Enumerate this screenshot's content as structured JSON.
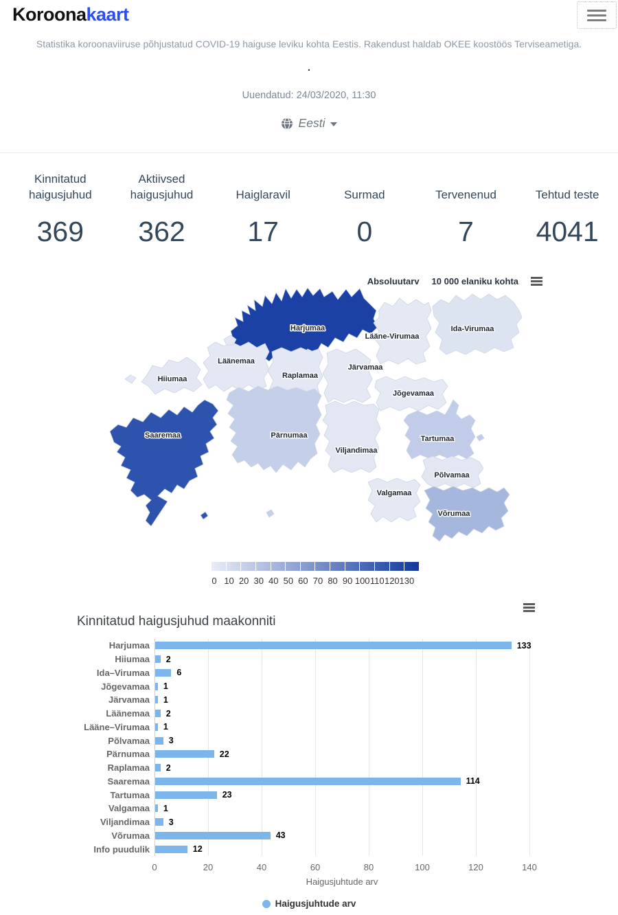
{
  "header": {
    "logo_black": "Koroona",
    "logo_blue": "kaart",
    "subtitle": "Statistika koroonaviiruse põhjustatud COVID-19 haiguse leviku kohta Eestis. Rakendust haldab OKEE koostöös Terviseametiga.",
    "dot": ".",
    "updated": "Uuendatud: 24/03/2020, 11:30",
    "language": {
      "selected": "Eesti"
    }
  },
  "colors": {
    "brand_blue": "#2b4ef0",
    "stat_text": "#33475b",
    "map_min": "#e9edf7",
    "map_max": "#10389e",
    "bar_blue": "#7cb5ec"
  },
  "stats": [
    {
      "label": "Kinnitatud haigusjuhud",
      "value": "369"
    },
    {
      "label": "Aktiivsed haigusjuhud",
      "value": "362"
    },
    {
      "label": "Haiglaravil",
      "value": "17"
    },
    {
      "label": "Surmad",
      "value": "0"
    },
    {
      "label": "Tervenenud",
      "value": "7"
    },
    {
      "label": "Tehtud teste",
      "value": "4041"
    }
  ],
  "map": {
    "mode_buttons": [
      "Absoluutarv",
      "10 000 elaniku kohta"
    ],
    "counties": [
      {
        "name": "Harjumaa",
        "value": 133,
        "color": "#1b41a6"
      },
      {
        "name": "Hiiumaa",
        "value": 2,
        "color": "#e3e8f4"
      },
      {
        "name": "Ida-Virumaa",
        "value": 6,
        "color": "#dde4f1"
      },
      {
        "name": "Jõgevamaa",
        "value": 1,
        "color": "#e5eaf5"
      },
      {
        "name": "Järvamaa",
        "value": 1,
        "color": "#e4e9f4"
      },
      {
        "name": "Läänemaa",
        "value": 2,
        "color": "#e3e8f4"
      },
      {
        "name": "Lääne-Virumaa",
        "value": 1,
        "color": "#e4e9f4"
      },
      {
        "name": "Põlvamaa",
        "value": 3,
        "color": "#e2e7f3"
      },
      {
        "name": "Pärnumaa",
        "value": 22,
        "color": "#c4cfe9"
      },
      {
        "name": "Raplamaa",
        "value": 2,
        "color": "#e3e8f4"
      },
      {
        "name": "Saaremaa",
        "value": 114,
        "color": "#2e53ae"
      },
      {
        "name": "Tartumaa",
        "value": 23,
        "color": "#c0cce8"
      },
      {
        "name": "Valgamaa",
        "value": 1,
        "color": "#e4e9f4"
      },
      {
        "name": "Viljandimaa",
        "value": 3,
        "color": "#e2e7f3"
      },
      {
        "name": "Võrumaa",
        "value": 43,
        "color": "#a6b7de"
      }
    ],
    "legend": {
      "ticks": [
        0,
        10,
        20,
        30,
        40,
        50,
        60,
        70,
        80,
        90,
        100,
        110,
        120,
        130
      ],
      "min_color": "#e9edf7",
      "max_color": "#10389e"
    }
  },
  "chart_data": {
    "type": "bar",
    "title": "Kinnitatud haigusjuhud maakonniti",
    "categories": [
      "Harjumaa",
      "Hiiumaa",
      "Ida–Virumaa",
      "Jõgevamaa",
      "Järvamaa",
      "Läänemaa",
      "Lääne–Virumaa",
      "Põlvamaa",
      "Pärnumaa",
      "Raplamaa",
      "Saaremaa",
      "Tartumaa",
      "Valgamaa",
      "Viljandimaa",
      "Võrumaa",
      "Info puudulik"
    ],
    "values": [
      133,
      2,
      6,
      1,
      1,
      2,
      1,
      3,
      22,
      2,
      114,
      23,
      1,
      3,
      43,
      12
    ],
    "xlabel": "Haigusjuhtude arv",
    "xlim": [
      0,
      140
    ],
    "x_ticks": [
      0,
      20,
      40,
      60,
      80,
      100,
      120,
      140
    ],
    "grid": true,
    "bar_color": "#7cb5ec",
    "legend_label": "Haigusjuhtude arv",
    "legend_position": "bottom"
  }
}
